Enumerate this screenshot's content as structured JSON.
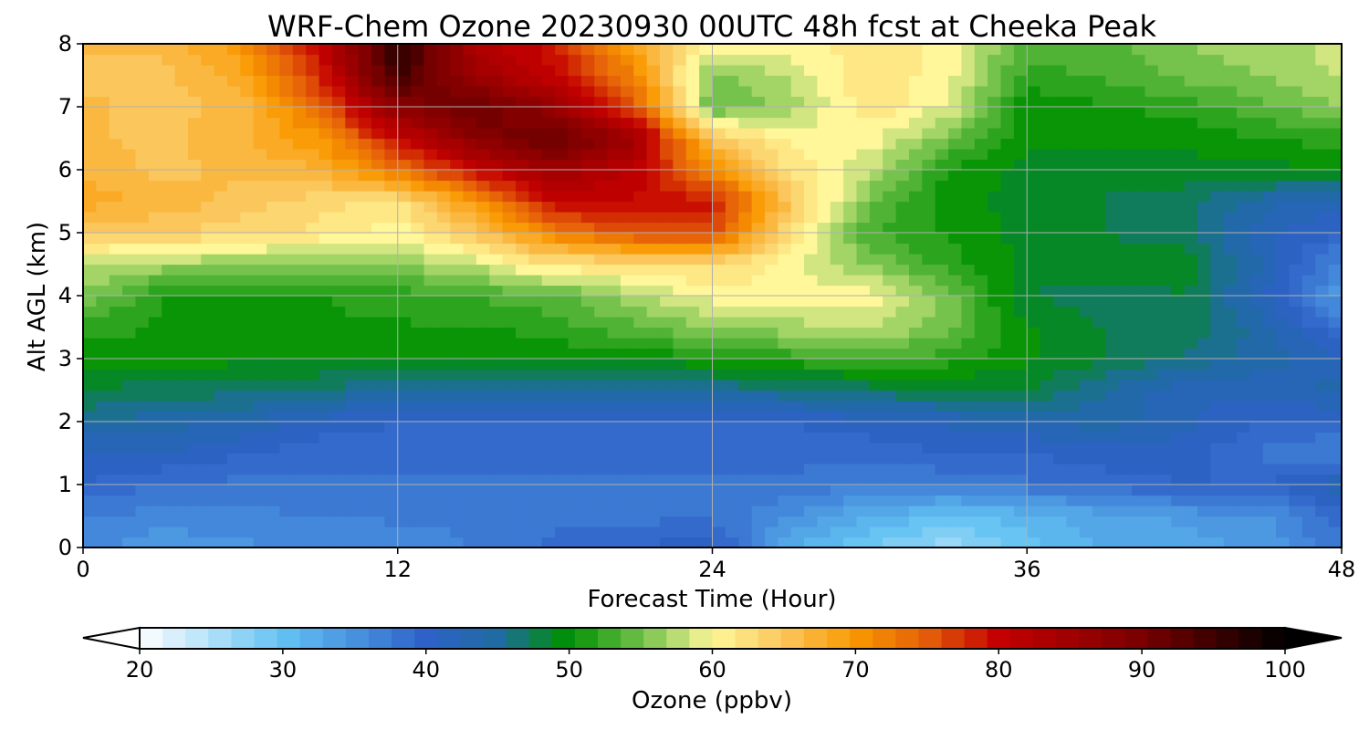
{
  "chart_data": {
    "type": "heatmap",
    "title": "WRF-Chem Ozone  20230930 00UTC 48h fcst at Cheeka Peak",
    "xlabel": "Forecast Time (Hour)",
    "ylabel": "Alt AGL (km)",
    "xlim": [
      0,
      48
    ],
    "ylim": [
      0,
      8
    ],
    "xticks": [
      "0",
      "12",
      "24",
      "36",
      "48"
    ],
    "yticks": [
      "0",
      "1",
      "2",
      "3",
      "4",
      "5",
      "6",
      "7",
      "8"
    ],
    "grid": true,
    "x_hours": [
      0,
      3,
      6,
      9,
      12,
      15,
      18,
      21,
      24,
      27,
      30,
      33,
      36,
      39,
      42,
      45,
      48
    ],
    "y_km": [
      0,
      0.5,
      1,
      1.5,
      2,
      2.5,
      3,
      3.5,
      4,
      4.5,
      5,
      5.5,
      6,
      6.5,
      7,
      7.5,
      8
    ],
    "ozone_ppbv": [
      [
        36,
        34,
        35,
        35,
        36,
        37,
        39,
        40,
        41,
        32,
        29,
        26,
        30,
        32,
        33,
        34,
        38
      ],
      [
        37,
        36,
        36,
        37,
        37,
        37,
        38,
        38,
        38,
        35,
        32,
        30,
        31,
        33,
        34,
        35,
        39
      ],
      [
        40,
        38,
        38,
        38,
        38,
        38,
        38,
        38,
        38,
        38,
        37,
        37,
        38,
        39,
        40,
        40,
        43
      ],
      [
        41,
        42,
        40,
        39,
        39,
        39,
        39,
        39,
        39,
        39,
        39,
        40,
        40,
        41,
        41,
        38,
        36
      ],
      [
        45,
        44,
        43,
        41,
        40,
        40,
        40,
        40,
        40,
        40,
        41,
        42,
        43,
        44,
        42,
        40,
        40
      ],
      [
        48,
        47,
        47,
        46,
        45,
        45,
        44,
        44,
        45,
        46,
        47,
        48,
        48,
        45,
        42,
        42,
        44
      ],
      [
        50,
        51,
        50,
        50,
        50,
        50,
        50,
        50,
        51,
        52,
        53,
        52,
        50,
        48,
        46,
        44,
        42
      ],
      [
        52,
        51,
        51,
        51,
        51,
        51,
        52,
        54,
        56,
        57,
        58,
        55,
        50,
        48,
        48,
        44,
        38
      ],
      [
        56,
        51,
        51,
        51,
        52,
        53,
        54,
        57,
        60,
        60,
        60,
        55,
        48,
        47,
        48,
        42,
        34
      ],
      [
        58,
        57,
        56,
        55,
        56,
        58,
        62,
        62,
        63,
        60,
        56,
        52,
        49,
        49,
        49,
        43,
        36
      ],
      [
        64,
        64,
        63,
        62,
        60,
        65,
        72,
        76,
        76,
        62,
        53,
        51,
        49,
        48,
        47,
        42,
        40
      ],
      [
        68,
        67,
        65,
        63,
        62,
        70,
        80,
        80,
        79,
        65,
        55,
        50,
        49,
        48,
        47,
        44,
        42
      ],
      [
        67,
        65,
        66,
        67,
        73,
        80,
        85,
        81,
        71,
        62,
        58,
        51,
        49,
        48,
        49,
        49,
        50
      ],
      [
        66,
        65,
        67,
        70,
        80,
        88,
        92,
        85,
        65,
        60,
        60,
        55,
        50,
        50,
        50,
        51,
        52
      ],
      [
        66,
        65,
        66,
        74,
        88,
        92,
        86,
        76,
        54,
        57,
        62,
        59,
        50,
        51,
        52,
        54,
        56
      ],
      [
        65,
        65,
        68,
        78,
        95,
        85,
        80,
        72,
        55,
        58,
        62,
        60,
        52,
        53,
        55,
        56,
        58
      ],
      [
        66,
        66,
        70,
        80,
        97,
        83,
        79,
        68,
        60,
        60,
        62,
        60,
        54,
        54,
        56,
        57,
        58
      ]
    ],
    "colorbar": {
      "label": "Ozone  (ppbv)",
      "min": 20,
      "max": 100,
      "ticks": [
        "20",
        "30",
        "40",
        "50",
        "60",
        "70",
        "80",
        "90",
        "100"
      ],
      "extend": "both",
      "colormap_stops": [
        {
          "v": 20,
          "c": "#ffffff"
        },
        {
          "v": 30,
          "c": "#62c2f3"
        },
        {
          "v": 40,
          "c": "#2f62c9"
        },
        {
          "v": 45,
          "c": "#1f6ba2"
        },
        {
          "v": 50,
          "c": "#009100"
        },
        {
          "v": 55,
          "c": "#6fc04a"
        },
        {
          "v": 60,
          "c": "#fff799"
        },
        {
          "v": 65,
          "c": "#fbc55a"
        },
        {
          "v": 70,
          "c": "#f99800"
        },
        {
          "v": 75,
          "c": "#e45e09"
        },
        {
          "v": 80,
          "c": "#c40000"
        },
        {
          "v": 90,
          "c": "#7a0000"
        },
        {
          "v": 100,
          "c": "#000000"
        }
      ]
    }
  }
}
